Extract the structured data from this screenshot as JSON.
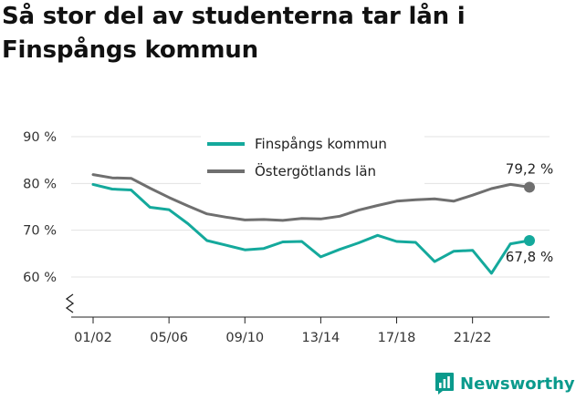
{
  "title": "Så stor del av studenterna tar lån i Finspångs kommun",
  "brand": "Newsworthy",
  "colors": {
    "teal": "#14a99c",
    "grey": "#6f6f6f",
    "axis": "#222222",
    "brand": "#0a9a8c"
  },
  "chart_data": {
    "type": "line",
    "title": "Så stor del av studenterna tar lån i Finspångs kommun",
    "xlabel": "",
    "ylabel": "",
    "ylim": [
      50,
      90
    ],
    "ytick_values": [
      60,
      70,
      80,
      90
    ],
    "ytick_labels": [
      "60 %",
      "70 %",
      "80 %",
      "90 %"
    ],
    "axis_break": true,
    "x": [
      "01/02",
      "02/03",
      "03/04",
      "04/05",
      "05/06",
      "06/07",
      "07/08",
      "08/09",
      "09/10",
      "10/11",
      "11/12",
      "12/13",
      "13/14",
      "14/15",
      "15/16",
      "16/17",
      "17/18",
      "18/19",
      "19/20",
      "20/21",
      "21/22",
      "22/23",
      "23/24",
      "24/25"
    ],
    "xtick_labels": [
      "01/02",
      "05/06",
      "09/10",
      "13/14",
      "17/18",
      "21/22"
    ],
    "legend_position": "top-center",
    "series": [
      {
        "name": "Finspångs kommun",
        "color": "#14a99c",
        "values": [
          79.8,
          78.8,
          78.6,
          74.9,
          74.4,
          71.4,
          67.8,
          66.8,
          65.8,
          66.1,
          67.5,
          67.6,
          64.3,
          65.9,
          67.3,
          68.9,
          67.6,
          67.4,
          63.3,
          65.5,
          65.7,
          60.8,
          67.1,
          67.8
        ],
        "end_label": "67,8 %"
      },
      {
        "name": "Östergötlands län",
        "color": "#6f6f6f",
        "values": [
          81.9,
          81.2,
          81.1,
          79.0,
          77.0,
          75.2,
          73.5,
          72.8,
          72.2,
          72.3,
          72.1,
          72.5,
          72.4,
          73.0,
          74.3,
          75.3,
          76.2,
          76.5,
          76.7,
          76.2,
          77.5,
          78.9,
          79.8,
          79.2
        ],
        "end_label": "79,2 %"
      }
    ]
  }
}
